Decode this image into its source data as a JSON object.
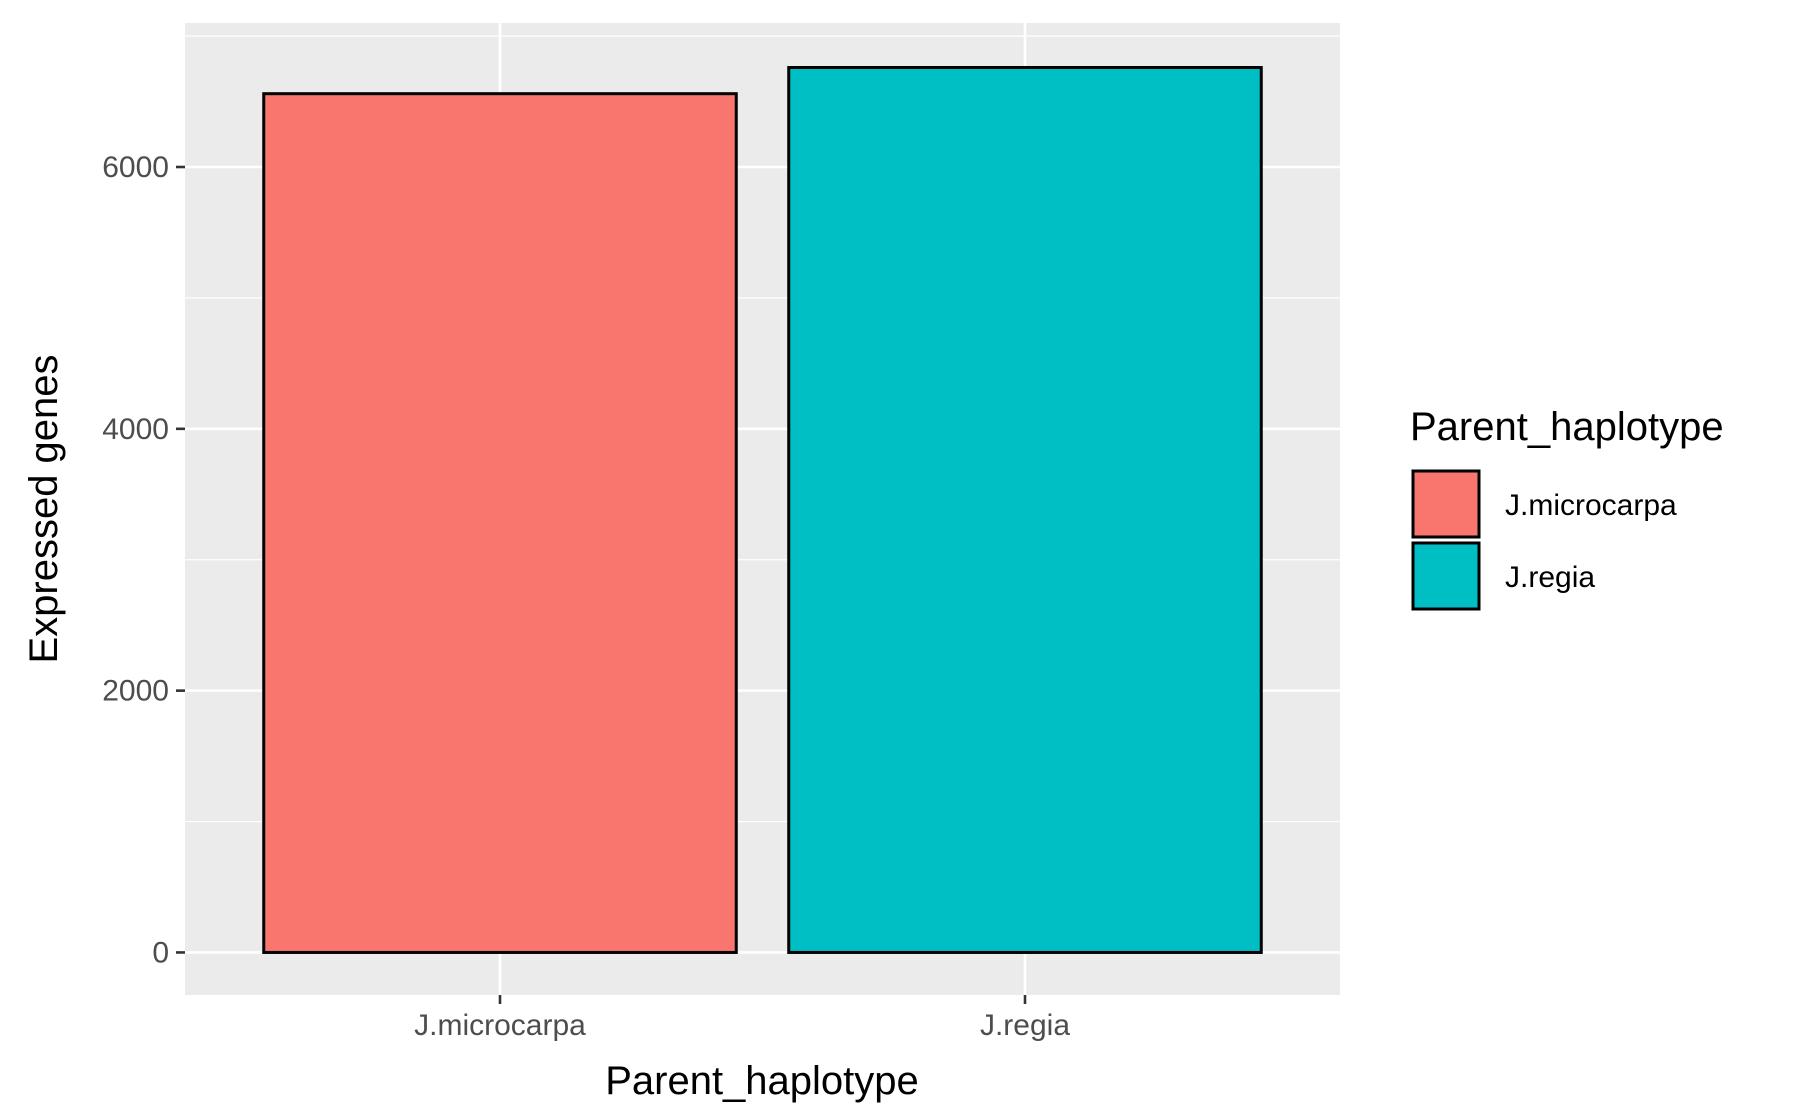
{
  "chart_data": {
    "type": "bar",
    "title": "",
    "xlabel": "Parent_haplotype",
    "ylabel": "Expressed genes",
    "categories": [
      "J.microcarpa",
      "J.regia"
    ],
    "values": [
      6560,
      6760
    ],
    "ylim": [
      -325,
      7100
    ],
    "yticks": [
      0,
      2000,
      4000,
      6000
    ],
    "ytick_labels": [
      "0",
      "2000",
      "4000",
      "6000"
    ],
    "grid": true,
    "legend": {
      "title": "Parent_haplotype",
      "placement": "right",
      "entries": [
        "J.microcarpa",
        "J.regia"
      ]
    },
    "colors": {
      "J.microcarpa": "#F8766D",
      "J.regia": "#00BFC4",
      "panel_background": "#EBEBEB",
      "grid": "#FFFFFF",
      "bar_outline": "#000000"
    }
  }
}
